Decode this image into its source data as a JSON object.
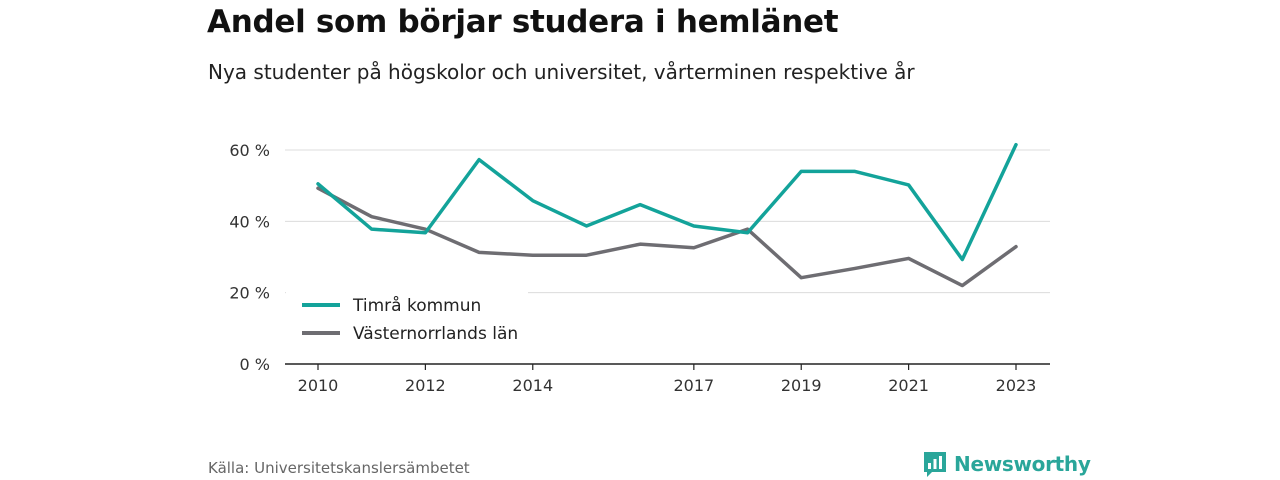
{
  "title": "Andel som börjar studera i hemlänet",
  "subtitle": "Nya studenter på högskolor och universitet, vårterminen respektive år",
  "source": "Källa: Universitetskanslersämbetet",
  "brand": {
    "name": "Newsworthy",
    "icon": "newsworthy-logo-icon",
    "color": "#2aa69a"
  },
  "chart_data": {
    "type": "line",
    "title": "Andel som börjar studera i hemlänet",
    "subtitle": "Nya studenter på högskolor och universitet, vårterminen respektive år",
    "xlabel": "",
    "ylabel": "",
    "x": [
      2010,
      2011,
      2012,
      2013,
      2014,
      2015,
      2016,
      2017,
      2018,
      2019,
      2020,
      2021,
      2022,
      2023
    ],
    "x_ticks": [
      "2010",
      "2012",
      "2014",
      "2017",
      "2019",
      "2021",
      "2023"
    ],
    "y_ticks": [
      "0 %",
      "20 %",
      "40 %",
      "60 %"
    ],
    "ylim": [
      0,
      60
    ],
    "grid": true,
    "legend_position": "bottom-left",
    "series": [
      {
        "name": "Timrå kommun",
        "color": "#13a39a",
        "values": [
          50.5,
          37.8,
          36.8,
          57.3,
          45.8,
          38.7,
          44.7,
          38.7,
          36.8,
          54.0,
          54.0,
          50.2,
          29.3,
          61.5
        ]
      },
      {
        "name": "Västernorrlands län",
        "color": "#6e6d72",
        "values": [
          49.3,
          41.3,
          37.8,
          31.3,
          30.5,
          30.5,
          33.6,
          32.6,
          37.8,
          24.2,
          26.8,
          29.6,
          22.0,
          32.9
        ]
      }
    ]
  }
}
